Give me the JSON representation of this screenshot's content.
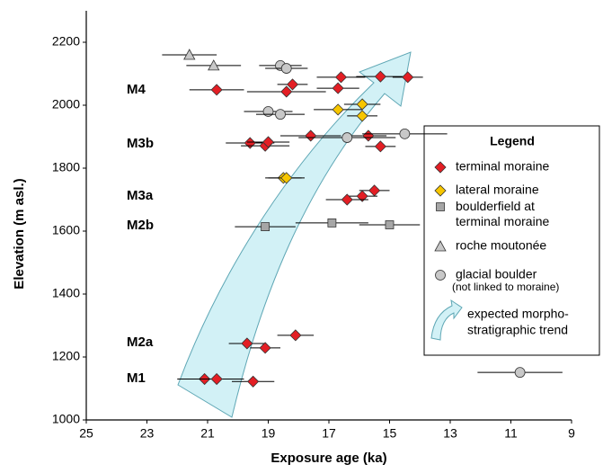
{
  "chart_data": {
    "type": "scatter",
    "x_label": "Exposure age (ka)",
    "y_label": "Elevation (m asl.)",
    "xlim": [
      25,
      9
    ],
    "xticks": [
      25,
      23,
      21,
      19,
      17,
      15,
      13,
      11,
      9
    ],
    "ylim": [
      1000,
      2300
    ],
    "yticks": [
      1000,
      1200,
      1400,
      1600,
      1800,
      2000,
      2200
    ],
    "stage_labels": [
      "M4",
      "M3b",
      "M3a",
      "M2b",
      "M2a",
      "M1"
    ],
    "legend_title": "Legend",
    "series": [
      {
        "name": "terminal moraine",
        "color": "#e31e24",
        "marker": "diamond",
        "x": [
          21.1,
          20.7,
          19.5,
          19.7,
          19.1,
          18.1,
          15.5,
          15.9,
          16.4,
          19.6,
          19.1,
          19.0,
          17.6,
          15.7,
          15.3,
          20.7,
          18.2,
          18.4,
          16.7,
          16.6,
          15.3,
          14.4
        ],
        "values": [
          1130,
          1130,
          1122,
          1243,
          1229,
          1269,
          1729,
          1711,
          1700,
          1880,
          1871,
          1883,
          1903,
          1903,
          1869,
          2049,
          2066,
          2043,
          2054,
          2089,
          2091,
          2089
        ],
        "xerr": [
          0.9,
          0.9,
          0.7,
          0.6,
          0.5,
          0.6,
          0.5,
          0.5,
          0.7,
          0.8,
          0.8,
          0.7,
          1.0,
          0.6,
          0.5,
          0.9,
          0.5,
          1.3,
          0.7,
          0.8,
          0.8,
          0.5
        ]
      },
      {
        "name": "lateral moraine",
        "color": "#f7c600",
        "marker": "diamond",
        "x": [
          18.5,
          18.4,
          16.7,
          15.9,
          15.9
        ],
        "values": [
          1769,
          1769,
          1986,
          2003,
          1966
        ],
        "xerr": [
          0.6,
          0.6,
          0.8,
          0.6,
          0.5
        ]
      },
      {
        "name": "boulderfield at terminal moraine",
        "color": "#a6a6a6",
        "marker": "square",
        "x": [
          19.1,
          16.9,
          15.0
        ],
        "values": [
          1614,
          1626,
          1620
        ],
        "xerr": [
          1.0,
          1.2,
          1.0
        ]
      },
      {
        "name": "roche moutonée",
        "color": "#c8c8c8",
        "marker": "triangle",
        "x": [
          21.6,
          20.8
        ],
        "values": [
          2160,
          2126
        ],
        "xerr": [
          0.9,
          0.9
        ]
      },
      {
        "name": "glacial boulder",
        "sublabel": "(not linked to moraine)",
        "color": "#c8c8c8",
        "marker": "circle",
        "x": [
          18.6,
          18.4,
          19.0,
          18.6,
          16.4,
          14.5,
          10.7
        ],
        "values": [
          2126,
          2117,
          1980,
          1971,
          1897,
          1909,
          1151
        ],
        "xerr": [
          0.7,
          0.7,
          0.8,
          0.8,
          1.6,
          1.4,
          1.4
        ]
      }
    ],
    "trend_label": [
      "expected morpho-",
      "stratigraphic trend"
    ]
  }
}
